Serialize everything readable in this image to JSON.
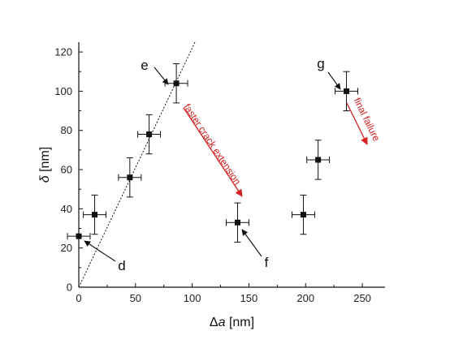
{
  "chart_data": {
    "type": "scatter",
    "xlabel_symbol": "Δ",
    "xlabel_var": "a",
    "xlabel_unit": " [nm]",
    "ylabel_symbol": "δ",
    "ylabel_unit": " [nm]",
    "xlim": [
      0,
      270
    ],
    "ylim": [
      0,
      125
    ],
    "xticks": [
      0,
      50,
      100,
      150,
      200,
      250
    ],
    "yticks": [
      0,
      20,
      40,
      60,
      80,
      100,
      120
    ],
    "grid": false,
    "points": [
      {
        "x": 0,
        "y": 26,
        "xerr": 10,
        "yerr": 0
      },
      {
        "x": 14,
        "y": 37,
        "xerr": 10,
        "yerr": 10
      },
      {
        "x": 45,
        "y": 56,
        "xerr": 10,
        "yerr": 10
      },
      {
        "x": 62,
        "y": 78,
        "xerr": 10,
        "yerr": 10
      },
      {
        "x": 86,
        "y": 104,
        "xerr": 10,
        "yerr": 10
      },
      {
        "x": 140,
        "y": 33,
        "xerr": 10,
        "yerr": 10
      },
      {
        "x": 198,
        "y": 37,
        "xerr": 10,
        "yerr": 10
      },
      {
        "x": 211,
        "y": 65,
        "xerr": 10,
        "yerr": 10
      },
      {
        "x": 236,
        "y": 100,
        "xerr": 10,
        "yerr": 10
      }
    ],
    "fit_line": {
      "style": "dotted",
      "slope": 1.22,
      "intercept": 0
    },
    "point_labels": [
      {
        "text": "d",
        "point_index": 0
      },
      {
        "text": "e",
        "point_index": 4
      },
      {
        "text": "f",
        "point_index": 5
      },
      {
        "text": "g",
        "point_index": 8
      }
    ],
    "annotations": [
      {
        "text": "faster crack extension",
        "color": "#d42020"
      },
      {
        "text": "final failure",
        "color": "#d42020"
      }
    ]
  }
}
